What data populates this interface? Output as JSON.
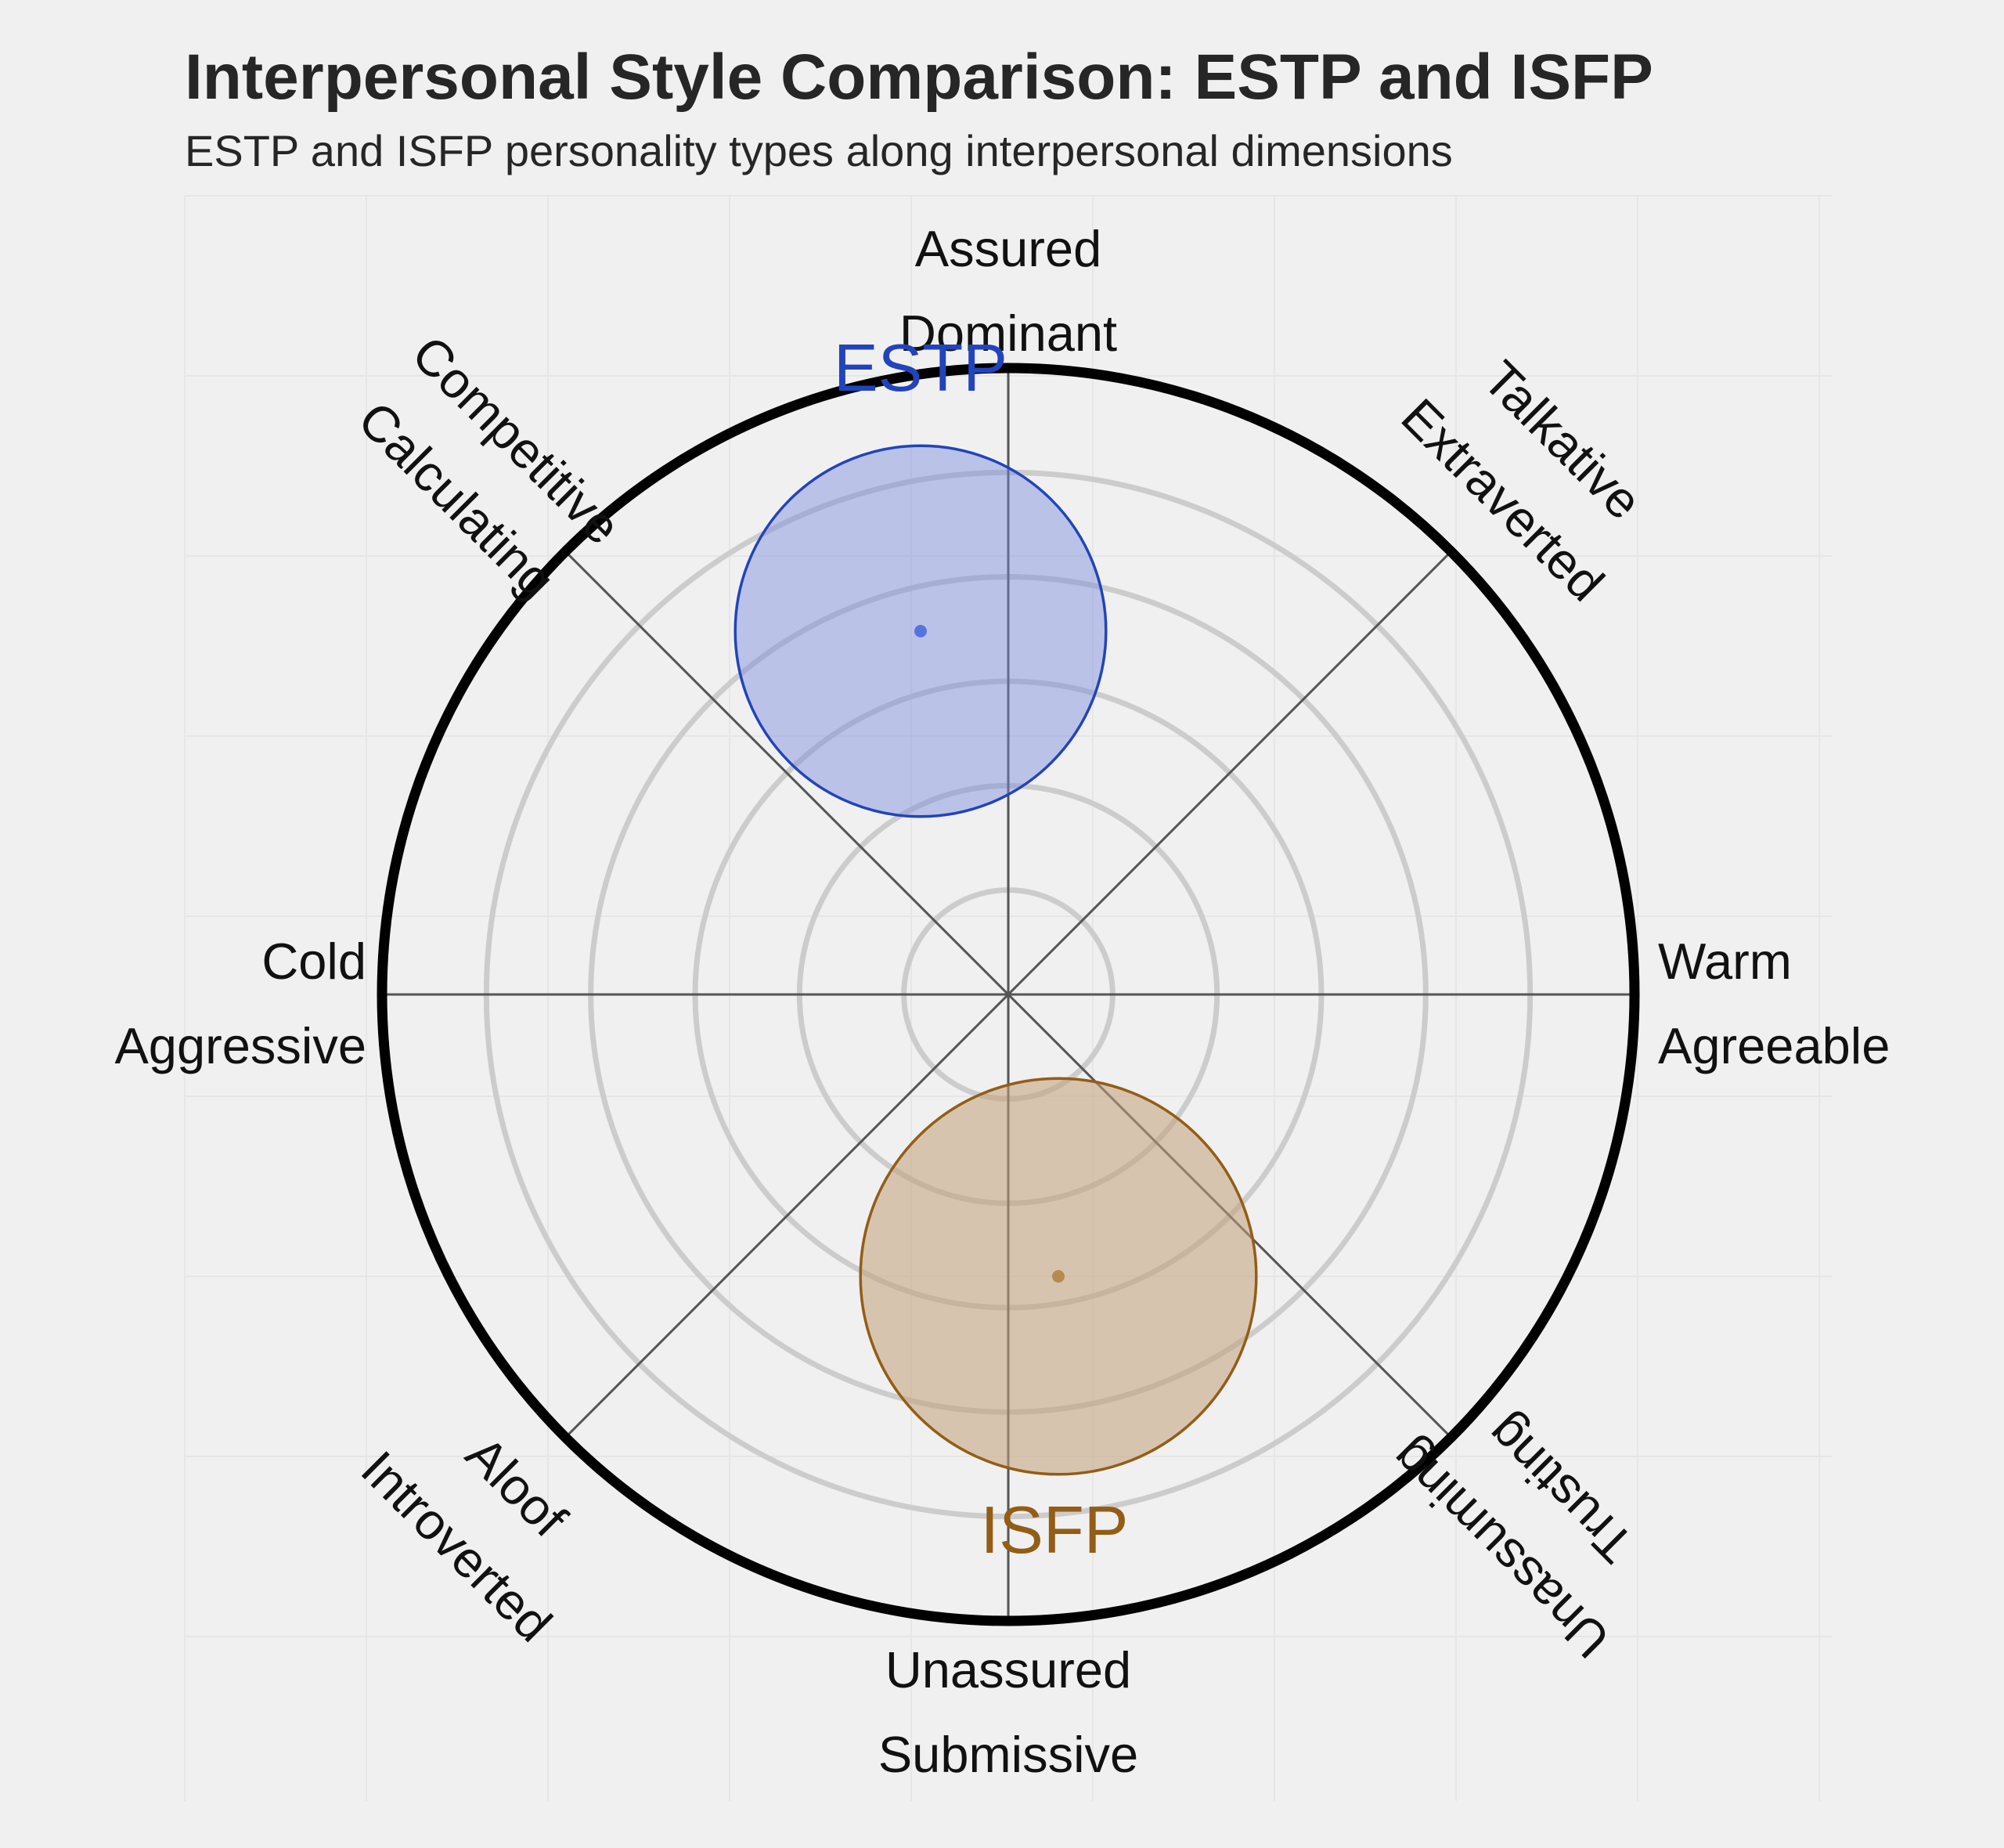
{
  "title": "Interpersonal Style Comparison: ESTP and ISFP",
  "subtitle": "ESTP and ISFP personality types along interpersonal dimensions",
  "colors": {
    "background": "#f0f0f0",
    "rings": "#cccccc",
    "axes": "#555555",
    "outer_circle": "#000000"
  },
  "chart_data": {
    "type": "scatter",
    "rings": 6,
    "axis_labels": [
      {
        "angle": 90,
        "lines": [
          "Assured",
          "Dominant"
        ]
      },
      {
        "angle": 45,
        "lines": [
          "Talkative",
          "Extraverted"
        ]
      },
      {
        "angle": 0,
        "lines": [
          "Warm",
          "Agreeable"
        ]
      },
      {
        "angle": -45,
        "lines": [
          "Unassuming",
          "Trusting"
        ]
      },
      {
        "angle": -90,
        "lines": [
          "Unassured",
          "Submissive"
        ]
      },
      {
        "angle": -135,
        "lines": [
          "Aloof",
          "Introverted"
        ]
      },
      {
        "angle": 180,
        "lines": [
          "Cold",
          "Aggressive"
        ]
      },
      {
        "angle": 135,
        "lines": [
          "Competitive",
          "Calculating"
        ]
      }
    ],
    "series": [
      {
        "name": "ESTP",
        "x": -0.14,
        "y": 0.58,
        "spread": 0.74,
        "color": "#2244bb",
        "fill": "rgba(120,140,220,0.45)",
        "point": "#4466dd"
      },
      {
        "name": "ISFP",
        "x": 0.08,
        "y": -0.45,
        "spread": 0.79,
        "color": "#935d16",
        "fill": "rgba(195,160,120,0.55)",
        "point": "#b08040"
      }
    ]
  }
}
